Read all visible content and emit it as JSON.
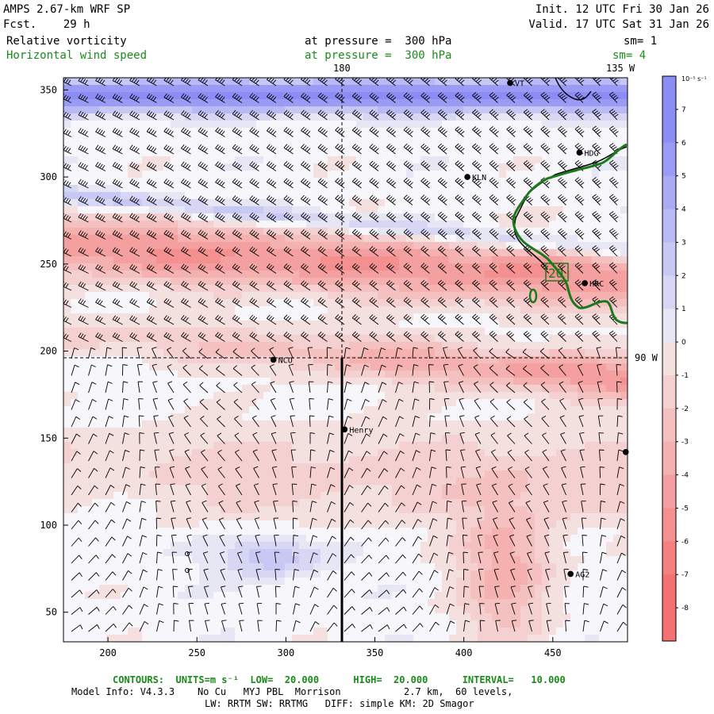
{
  "header": {
    "model": "AMPS 2.67-km WRF SP",
    "forecast": "Fcst.    29 h",
    "init": "Init. 12 UTC Fri 30 Jan 26",
    "valid": "Valid. 17 UTC Sat 31 Jan 26",
    "field1": "Relative vorticity",
    "field1_level": "at pressure =  300 hPa",
    "field1_sm": "sm= 1",
    "field2": "Horizontal wind speed",
    "field2_level": "at pressure =  300 hPa",
    "field2_sm": "sm= 4"
  },
  "map_labels": {
    "lon_180": "180",
    "lon_135w": "135 W",
    "lon_90w": "90 W",
    "contour_label": "20"
  },
  "stations": [
    {
      "name": "VT",
      "x": 426,
      "y": 354
    },
    {
      "name": "HDG",
      "x": 465,
      "y": 314
    },
    {
      "name": "KLN",
      "x": 402,
      "y": 300
    },
    {
      "name": "HRC",
      "x": 468,
      "y": 239
    },
    {
      "name": "NCO",
      "x": 293,
      "y": 195
    },
    {
      "name": "Henry",
      "x": 333,
      "y": 155
    },
    {
      "name": "",
      "x": 491,
      "y": 142
    },
    {
      "name": "AG2",
      "x": 460,
      "y": 72
    }
  ],
  "axes": {
    "x_ticks": [
      200,
      250,
      300,
      350,
      400,
      450
    ],
    "y_ticks": [
      50,
      100,
      150,
      200,
      250,
      300,
      350
    ],
    "x_range": [
      175,
      492
    ],
    "y_range": [
      33,
      357
    ]
  },
  "colorbar": {
    "units": "10⁻⁵ s⁻¹",
    "labels": [
      "7",
      "6",
      "5",
      "4",
      "3",
      "2",
      "1",
      "0",
      "-1",
      "-2",
      "-3",
      "-4",
      "-5",
      "-6",
      "-7",
      "-8"
    ],
    "levels": [
      8,
      7,
      6,
      5,
      4,
      3,
      2,
      1,
      0,
      -1,
      -2,
      -3,
      -4,
      -5,
      -6,
      -7,
      -8,
      -9
    ],
    "positive_color": "#8c8cf0",
    "negative_color": "#f07070"
  },
  "footer": {
    "contours": "CONTOURS:  UNITS=m s⁻¹  LOW=  20.000      HIGH=  20.000      INTERVAL=   10.000",
    "model_info": "Model Info: V4.3.3    No Cu   MYJ PBL  Morrison           2.7 km,  60 levels,",
    "physics": "LW: RRTM SW: RRTMG   DIFF: simple KM: 2D Smagor"
  }
}
